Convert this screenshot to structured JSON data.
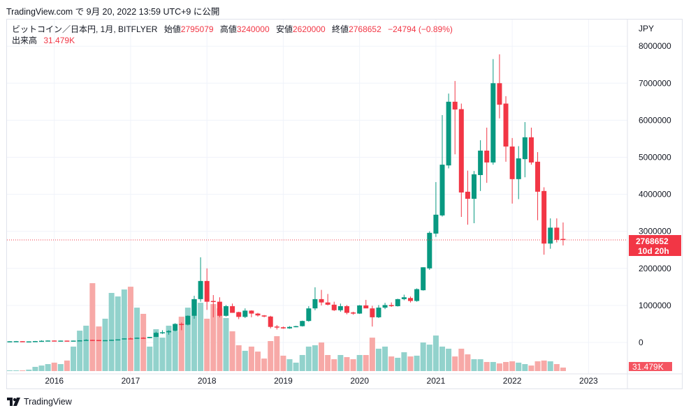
{
  "published": "TradingView.com で 9月 20, 2022 13:59 UTC+9 に公開",
  "legend": {
    "symbol": "ビットコイン／日本円, 1月, BITFLYER",
    "open_label": "始値",
    "open": "2795079",
    "high_label": "高値",
    "high": "3240000",
    "low_label": "安値",
    "low": "2620000",
    "close_label": "終値",
    "close": "2768652",
    "change": "−24794 (−0.89%)",
    "volume_label": "出来高",
    "volume": "31.479K"
  },
  "price_axis": {
    "currency": "JPY",
    "current_price": "2768652",
    "countdown": "10d 20h",
    "volume_tag": "31.479K"
  },
  "footer": {
    "brand": "TradingView"
  },
  "colors": {
    "up": "#089981",
    "down": "#f23645",
    "vol_up": "#92d2cc",
    "vol_down": "#f7a9a7",
    "grid": "#f0f3fa"
  },
  "chart_data": {
    "type": "candlestick",
    "interval": "1M",
    "ylim": [
      0,
      8000000
    ],
    "yticks": [
      0,
      1000000,
      2000000,
      3000000,
      4000000,
      5000000,
      6000000,
      7000000,
      8000000
    ],
    "ytick_labels": [
      "0",
      "1000000",
      "2000000",
      "3000000",
      "4000000",
      "5000000",
      "6000000",
      "7000000",
      "8000000"
    ],
    "xticks": [
      {
        "label": "2016",
        "index": 7
      },
      {
        "label": "2017",
        "index": 19
      },
      {
        "label": "2018",
        "index": 31
      },
      {
        "label": "2019",
        "index": 43
      },
      {
        "label": "2020",
        "index": 55
      },
      {
        "label": "2021",
        "index": 67
      },
      {
        "label": "2022",
        "index": 79
      },
      {
        "label": "2023",
        "index": 91
      }
    ],
    "ohlc": [
      [
        28000,
        33000,
        27000,
        32000
      ],
      [
        32000,
        40000,
        31000,
        35000
      ],
      [
        35000,
        36000,
        25000,
        28000
      ],
      [
        28000,
        30000,
        27000,
        29000
      ],
      [
        29000,
        40000,
        28000,
        37000
      ],
      [
        37000,
        58000,
        36000,
        45000
      ],
      [
        45000,
        56000,
        43000,
        52000
      ],
      [
        52000,
        54000,
        42000,
        45000
      ],
      [
        45000,
        51000,
        42000,
        50000
      ],
      [
        50000,
        50000,
        45000,
        47000
      ],
      [
        47000,
        51000,
        46000,
        50000
      ],
      [
        50000,
        60000,
        49000,
        57000
      ],
      [
        57000,
        86000,
        56000,
        70000
      ],
      [
        70000,
        72000,
        60000,
        66000
      ],
      [
        66000,
        66000,
        50000,
        59000
      ],
      [
        59000,
        63000,
        58000,
        62000
      ],
      [
        62000,
        75000,
        61000,
        73000
      ],
      [
        73000,
        84000,
        72000,
        83000
      ],
      [
        83000,
        112000,
        82000,
        110000
      ],
      [
        110000,
        130000,
        85000,
        105000
      ],
      [
        105000,
        135000,
        100000,
        128000
      ],
      [
        128000,
        140000,
        100000,
        118000
      ],
      [
        118000,
        150000,
        115000,
        150000
      ],
      [
        150000,
        290000,
        145000,
        260000
      ],
      [
        260000,
        330000,
        230000,
        275000
      ],
      [
        275000,
        330000,
        210000,
        310000
      ],
      [
        310000,
        520000,
        300000,
        500000
      ],
      [
        500000,
        540000,
        330000,
        480000
      ],
      [
        480000,
        730000,
        460000,
        720000
      ],
      [
        720000,
        1260000,
        640000,
        1170000
      ],
      [
        1170000,
        2300000,
        1100000,
        1660000
      ],
      [
        1660000,
        2000000,
        880000,
        1100000
      ],
      [
        1120000,
        1280000,
        680000,
        1100000
      ],
      [
        1100000,
        1220000,
        680000,
        720000
      ],
      [
        720000,
        1010000,
        700000,
        980000
      ],
      [
        980000,
        1050000,
        800000,
        800000
      ],
      [
        820000,
        830000,
        630000,
        690000
      ],
      [
        690000,
        920000,
        660000,
        860000
      ],
      [
        860000,
        870000,
        680000,
        780000
      ],
      [
        780000,
        800000,
        700000,
        730000
      ],
      [
        730000,
        740000,
        680000,
        700000
      ],
      [
        700000,
        720000,
        380000,
        420000
      ],
      [
        430000,
        470000,
        350000,
        410000
      ],
      [
        410000,
        430000,
        370000,
        380000
      ],
      [
        380000,
        440000,
        370000,
        420000
      ],
      [
        420000,
        450000,
        410000,
        440000
      ],
      [
        440000,
        590000,
        430000,
        580000
      ],
      [
        580000,
        980000,
        560000,
        920000
      ],
      [
        920000,
        1490000,
        870000,
        1170000
      ],
      [
        1170000,
        1420000,
        1000000,
        1080000
      ],
      [
        1080000,
        1310000,
        1000000,
        1020000
      ],
      [
        1020000,
        1100000,
        850000,
        870000
      ],
      [
        870000,
        1050000,
        830000,
        980000
      ],
      [
        980000,
        1010000,
        760000,
        800000
      ],
      [
        810000,
        830000,
        750000,
        780000
      ],
      [
        780000,
        1010000,
        770000,
        1000000
      ],
      [
        1000000,
        1150000,
        930000,
        920000
      ],
      [
        920000,
        990000,
        430000,
        680000
      ],
      [
        680000,
        1010000,
        660000,
        940000
      ],
      [
        940000,
        1070000,
        900000,
        1010000
      ],
      [
        1010000,
        1080000,
        960000,
        980000
      ],
      [
        980000,
        1180000,
        970000,
        1170000
      ],
      [
        1170000,
        1290000,
        1140000,
        1220000
      ],
      [
        1200000,
        1240000,
        1080000,
        1120000
      ],
      [
        1120000,
        1460000,
        1100000,
        1440000
      ],
      [
        1410000,
        2030000,
        1400000,
        2030000
      ],
      [
        2000000,
        3000000,
        1960000,
        2960000
      ],
      [
        2940000,
        4330000,
        2850000,
        3450000
      ],
      [
        3430000,
        6140000,
        3400000,
        4800000
      ],
      [
        4780000,
        6720000,
        4700000,
        6500000
      ],
      [
        6500000,
        7060000,
        5080000,
        6290000
      ],
      [
        6300000,
        6450000,
        3390000,
        4050000
      ],
      [
        4070000,
        4640000,
        3180000,
        3880000
      ],
      [
        3880000,
        4630000,
        3220000,
        4540000
      ],
      [
        4520000,
        5460000,
        4090000,
        5180000
      ],
      [
        5180000,
        5800000,
        4310000,
        4860000
      ],
      [
        4860000,
        7650000,
        4800000,
        7000000
      ],
      [
        7000000,
        7780000,
        6050000,
        6420000
      ],
      [
        6450000,
        6650000,
        4880000,
        5290000
      ],
      [
        5290000,
        5520000,
        3750000,
        4410000
      ],
      [
        4410000,
        5300000,
        3870000,
        4970000
      ],
      [
        4950000,
        5950000,
        4460000,
        5540000
      ],
      [
        5540000,
        5800000,
        4800000,
        4860000
      ],
      [
        4880000,
        5140000,
        3300000,
        4070000
      ],
      [
        4090000,
        4190000,
        2370000,
        2670000
      ],
      [
        2670000,
        3350000,
        2530000,
        3100000
      ],
      [
        3100000,
        3350000,
        2700000,
        2770000
      ],
      [
        2795079,
        3240000,
        2620000,
        2768652
      ]
    ],
    "volume_k": [
      6,
      6,
      6,
      13,
      38,
      50,
      63,
      76,
      63,
      95,
      221,
      365,
      410,
      794,
      403,
      473,
      706,
      674,
      737,
      762,
      573,
      517,
      221,
      378,
      302,
      410,
      359,
      491,
      573,
      649,
      617,
      473,
      605,
      567,
      479,
      359,
      233,
      183,
      221,
      176,
      113,
      271,
      315,
      139,
      107,
      76,
      145,
      221,
      233,
      258,
      145,
      107,
      145,
      126,
      107,
      145,
      145,
      302,
      202,
      221,
      132,
      120,
      170,
      132,
      139,
      258,
      239,
      321,
      221,
      202,
      132,
      202,
      151,
      107,
      107,
      82,
      82,
      69,
      82,
      88,
      76,
      63,
      50,
      88,
      95,
      88,
      63,
      31.479
    ]
  }
}
